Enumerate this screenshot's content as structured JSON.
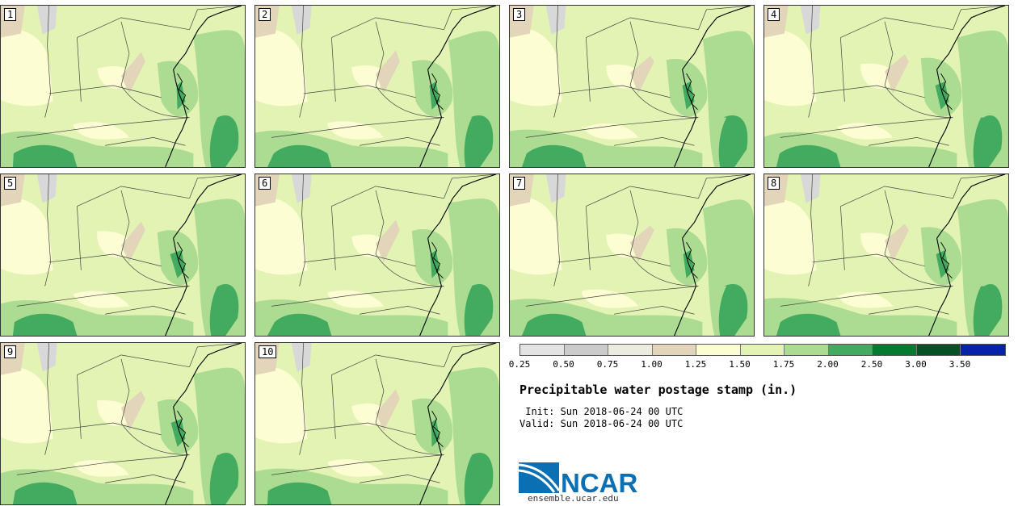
{
  "stamps": [
    {
      "label": "1"
    },
    {
      "label": "2"
    },
    {
      "label": "3"
    },
    {
      "label": "4"
    },
    {
      "label": "5"
    },
    {
      "label": "6"
    },
    {
      "label": "7"
    },
    {
      "label": "8"
    },
    {
      "label": "9"
    },
    {
      "label": "10"
    }
  ],
  "legend": {
    "colors": [
      "#e3e3e3",
      "#cbcbcb",
      "#ebebdf",
      "#e2d5b9",
      "#fdfdd3",
      "#e2f3b4",
      "#acdc92",
      "#43ab5f",
      "#057b32",
      "#045127",
      "#0522a8"
    ],
    "ticks": [
      "0.25",
      "0.50",
      "0.75",
      "1.00",
      "1.25",
      "1.50",
      "1.75",
      "2.00",
      "2.50",
      "3.00",
      "3.50"
    ]
  },
  "title": "Precipitable water postage stamp (in.)",
  "init_line": " Init: Sun 2018-06-24 00 UTC",
  "valid_line": "Valid: Sun 2018-06-24 00 UTC",
  "logo": {
    "text": "NCAR",
    "url": "ensemble.ucar.edu",
    "color": "#0a6fb3"
  },
  "map_colors": {
    "base": "#e2f3b4",
    "light": "#fdfdd3",
    "mid": "#acdc92",
    "dark": "#43ab5f",
    "tan": "#e2d5b9",
    "grey": "#d8d8d8"
  }
}
